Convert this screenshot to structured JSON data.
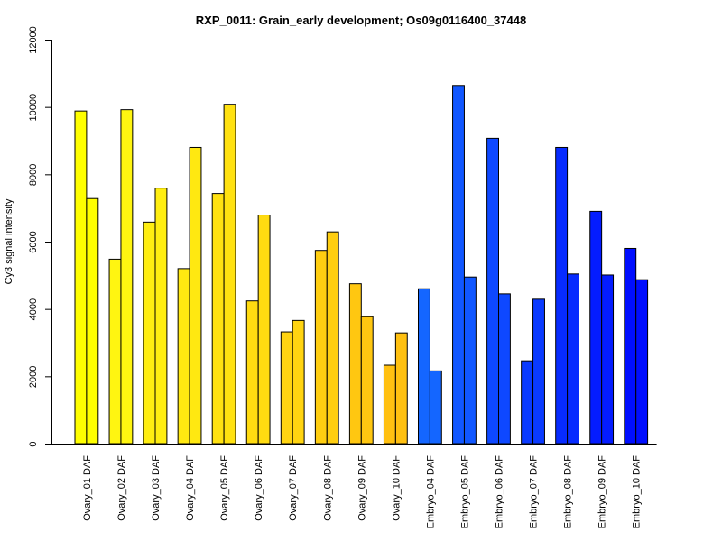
{
  "chart_data": {
    "type": "bar",
    "title": "RXP_0011: Grain_early development; Os09g0116400_37448",
    "xlabel": "",
    "ylabel": "Cy3 signal intensity",
    "ylim": [
      0,
      12000
    ],
    "yticks": [
      0,
      2000,
      4000,
      6000,
      8000,
      10000,
      12000
    ],
    "categories": [
      "Ovary_01 DAF",
      "Ovary_02 DAF",
      "Ovary_03 DAF",
      "Ovary_04 DAF",
      "Ovary_05 DAF",
      "Ovary_06 DAF",
      "Ovary_07 DAF",
      "Ovary_08 DAF",
      "Ovary_09 DAF",
      "Ovary_10 DAF",
      "Embryo_04 DAF",
      "Embryo_05 DAF",
      "Embryo_06 DAF",
      "Embryo_07 DAF",
      "Embryo_08 DAF",
      "Embryo_09 DAF",
      "Embryo_10 DAF"
    ],
    "series": [
      {
        "values": [
          9880,
          5480,
          6580,
          5200,
          7430,
          4240,
          3320,
          5740,
          4750,
          2330,
          4600,
          10640,
          9070,
          2460,
          8800,
          6900,
          5800
        ]
      },
      {
        "values": [
          7280,
          9920,
          7590,
          8800,
          10080,
          6790,
          3660,
          6290,
          3770,
          3290,
          2160,
          4950,
          4450,
          4290,
          5040,
          5010,
          4870
        ]
      }
    ],
    "colors": [
      "#ffff00",
      "#fff511",
      "#ffee11",
      "#ffe811",
      "#ffe111",
      "#ffdb11",
      "#ffd411",
      "#ffce11",
      "#ffc711",
      "#ffc011",
      "#1466ff",
      "#1157ff",
      "#0e48ff",
      "#0a3aff",
      "#072bff",
      "#041cff",
      "#000eff"
    ],
    "grid": false,
    "legend": "none"
  }
}
